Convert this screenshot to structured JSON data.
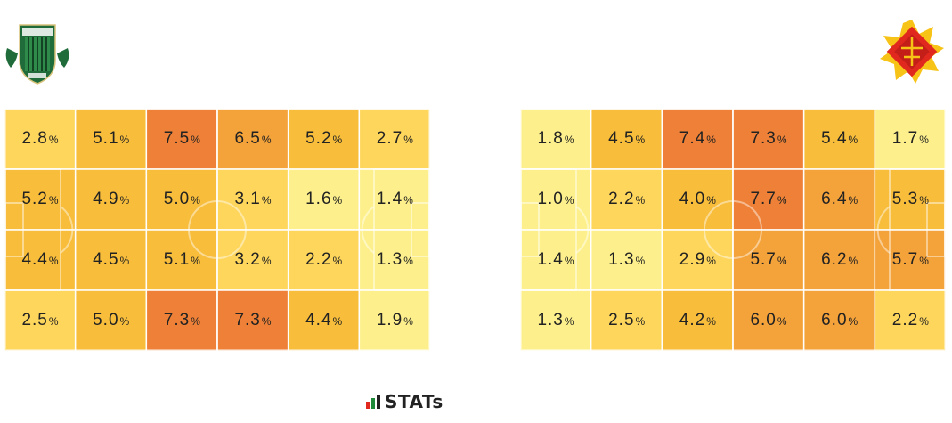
{
  "chart_data": [
    {
      "type": "heatmap",
      "team": "left",
      "rows": 4,
      "cols": 6,
      "unit": "%",
      "values": [
        [
          2.8,
          5.1,
          7.5,
          6.5,
          5.2,
          2.7
        ],
        [
          5.2,
          4.9,
          5.0,
          3.1,
          1.6,
          1.4
        ],
        [
          4.4,
          4.5,
          5.1,
          3.2,
          2.2,
          1.3
        ],
        [
          2.5,
          5.0,
          7.3,
          7.3,
          4.4,
          1.9
        ]
      ]
    },
    {
      "type": "heatmap",
      "team": "right",
      "rows": 4,
      "cols": 6,
      "unit": "%",
      "values": [
        [
          1.8,
          4.5,
          7.4,
          7.3,
          5.4,
          1.7
        ],
        [
          1.0,
          2.2,
          4.0,
          7.7,
          6.4,
          5.3
        ],
        [
          1.4,
          1.3,
          2.9,
          5.7,
          6.2,
          5.7
        ],
        [
          1.3,
          2.5,
          4.2,
          6.0,
          6.0,
          2.2
        ]
      ]
    }
  ],
  "colors": {
    "very_low": "#fdf08c",
    "low": "#fed65c",
    "mid": "#f7bd3b",
    "high": "#f4a23a",
    "very_high": "#ee8137",
    "left_logo_green": "#1f6b3a",
    "right_logo_red": "#e0281f",
    "right_logo_yellow": "#f6c316"
  },
  "color_thresholds": [
    2.0,
    4.0,
    5.5,
    7.0
  ],
  "brand": {
    "name": "STATs"
  }
}
